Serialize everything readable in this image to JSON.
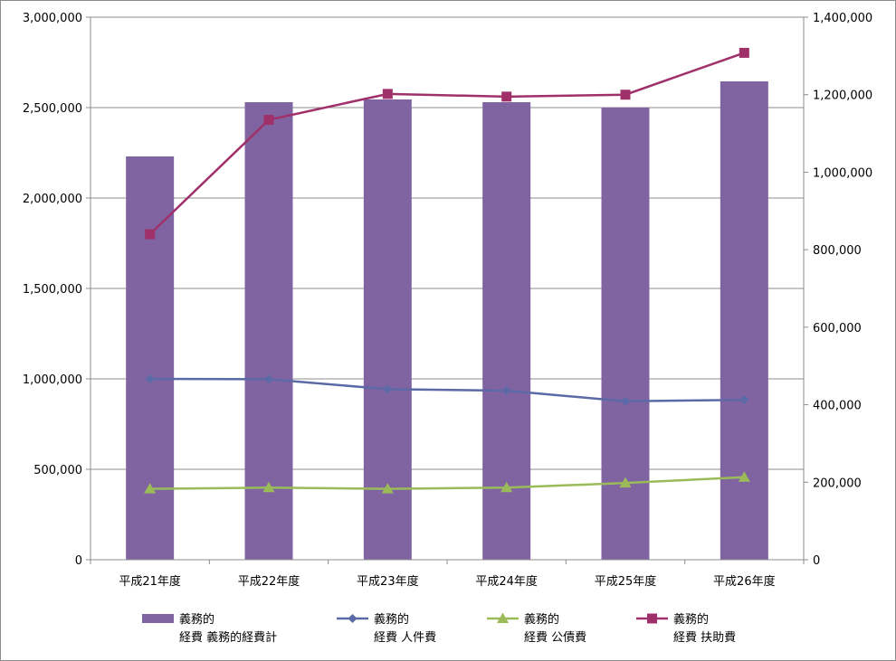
{
  "chart_data": {
    "type": "bar",
    "categories": [
      "平成21年度",
      "平成22年度",
      "平成23年度",
      "平成24年度",
      "平成25年度",
      "平成26年度"
    ],
    "y_left": {
      "min": 0,
      "max": 3000000,
      "step": 500000,
      "tick_labels": [
        "0",
        "500,000",
        "1,000,000",
        "1,500,000",
        "2,000,000",
        "2,500,000",
        "3,000,000"
      ]
    },
    "y_right": {
      "min": 0,
      "max": 1400000,
      "step": 200000,
      "tick_labels": [
        "0",
        "200,000",
        "400,000",
        "600,000",
        "800,000",
        "1,000,000",
        "1,200,000",
        "1,400,000"
      ]
    },
    "grid": true,
    "legend_position": "bottom",
    "series": [
      {
        "name_line1": "義務的",
        "name_line2": "経費 義務的経費計",
        "kind": "bar",
        "axis": "left",
        "color": "#8064a2",
        "values": [
          2230000,
          2530000,
          2545000,
          2530000,
          2500000,
          2645000
        ]
      },
      {
        "name_line1": "義務的",
        "name_line2": "経費 人件費",
        "kind": "line",
        "axis": "left",
        "marker": "diamond",
        "color": "#5b6aa6",
        "values": [
          1000000,
          998000,
          943000,
          935000,
          876000,
          884000
        ]
      },
      {
        "name_line1": "義務的",
        "name_line2": "経費 公債費",
        "kind": "line",
        "axis": "right",
        "marker": "triangle",
        "color": "#9bbb59",
        "values": [
          183000,
          186000,
          183000,
          186000,
          198000,
          213000
        ]
      },
      {
        "name_line1": "義務的",
        "name_line2": "経費 扶助費",
        "kind": "line",
        "axis": "right",
        "marker": "square",
        "color": "#a0306a",
        "values": [
          840000,
          1135000,
          1202000,
          1195000,
          1200000,
          1308000
        ]
      }
    ]
  }
}
